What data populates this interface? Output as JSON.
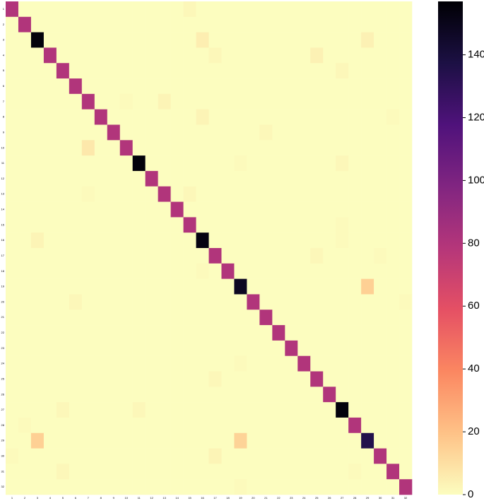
{
  "chart_data": {
    "type": "heatmap",
    "x": [
      "1",
      "2",
      "3",
      "4",
      "5",
      "6",
      "7",
      "8",
      "9",
      "10",
      "11",
      "12",
      "13",
      "14",
      "15",
      "16",
      "17",
      "18",
      "19",
      "20",
      "21",
      "22",
      "23",
      "24",
      "25",
      "26",
      "27",
      "28",
      "29",
      "30",
      "31",
      "32"
    ],
    "y": [
      "1",
      "2",
      "3",
      "4",
      "5",
      "6",
      "7",
      "8",
      "9",
      "10",
      "11",
      "12",
      "13",
      "14",
      "15",
      "16",
      "17",
      "18",
      "19",
      "20",
      "21",
      "22",
      "23",
      "24",
      "25",
      "26",
      "27",
      "28",
      "29",
      "30",
      "31",
      "32"
    ],
    "values": [
      [
        80,
        0,
        0,
        0,
        0,
        0,
        0,
        0,
        0,
        0,
        0,
        0,
        0,
        0,
        2,
        0,
        0,
        0,
        0,
        0,
        0,
        0,
        0,
        0,
        0,
        0,
        0,
        0,
        0,
        0,
        0,
        0
      ],
      [
        0,
        80,
        0,
        0,
        0,
        0,
        0,
        0,
        0,
        0,
        0,
        0,
        0,
        0,
        0,
        0,
        0,
        0,
        0,
        0,
        0,
        0,
        0,
        0,
        0,
        0,
        0,
        0,
        0,
        0,
        0,
        0
      ],
      [
        0,
        0,
        155,
        0,
        0,
        0,
        0,
        0,
        0,
        0,
        0,
        0,
        0,
        0,
        0,
        5,
        0,
        0,
        0,
        0,
        0,
        0,
        0,
        0,
        0,
        0,
        0,
        0,
        4,
        0,
        0,
        0
      ],
      [
        0,
        0,
        0,
        80,
        0,
        0,
        0,
        0,
        0,
        0,
        0,
        0,
        0,
        0,
        0,
        0,
        2,
        0,
        0,
        0,
        0,
        0,
        0,
        0,
        4,
        0,
        0,
        0,
        0,
        0,
        0,
        0
      ],
      [
        0,
        0,
        0,
        0,
        80,
        0,
        0,
        0,
        0,
        0,
        0,
        0,
        0,
        0,
        0,
        0,
        0,
        0,
        0,
        0,
        0,
        0,
        0,
        0,
        0,
        0,
        2,
        0,
        0,
        0,
        0,
        0
      ],
      [
        0,
        0,
        0,
        0,
        0,
        80,
        0,
        0,
        0,
        0,
        0,
        0,
        0,
        0,
        0,
        0,
        0,
        0,
        0,
        0,
        0,
        0,
        0,
        0,
        0,
        0,
        0,
        0,
        0,
        0,
        0,
        0
      ],
      [
        0,
        0,
        0,
        0,
        0,
        0,
        80,
        0,
        0,
        1,
        0,
        0,
        3,
        0,
        0,
        0,
        0,
        0,
        0,
        0,
        0,
        0,
        0,
        0,
        0,
        0,
        0,
        0,
        0,
        0,
        0,
        0
      ],
      [
        0,
        0,
        0,
        0,
        0,
        0,
        0,
        80,
        0,
        0,
        0,
        0,
        0,
        0,
        0,
        3,
        0,
        0,
        0,
        0,
        0,
        0,
        0,
        0,
        0,
        0,
        0,
        0,
        0,
        0,
        1,
        0
      ],
      [
        0,
        0,
        0,
        0,
        0,
        0,
        0,
        0,
        80,
        0,
        0,
        0,
        0,
        0,
        0,
        0,
        0,
        0,
        0,
        0,
        2,
        0,
        0,
        0,
        0,
        0,
        0,
        0,
        0,
        0,
        0,
        0
      ],
      [
        0,
        0,
        0,
        0,
        0,
        0,
        7,
        0,
        0,
        80,
        0,
        0,
        0,
        0,
        0,
        0,
        0,
        0,
        0,
        0,
        0,
        0,
        0,
        0,
        0,
        0,
        0,
        0,
        0,
        0,
        0,
        0
      ],
      [
        0,
        0,
        0,
        0,
        0,
        0,
        0,
        0,
        0,
        0,
        155,
        0,
        0,
        0,
        0,
        0,
        0,
        0,
        1,
        0,
        0,
        0,
        0,
        0,
        0,
        0,
        2,
        0,
        0,
        0,
        0,
        0
      ],
      [
        0,
        0,
        0,
        0,
        0,
        0,
        0,
        0,
        0,
        0,
        0,
        80,
        0,
        0,
        0,
        0,
        0,
        0,
        0,
        0,
        0,
        0,
        0,
        0,
        0,
        0,
        0,
        0,
        0,
        0,
        0,
        0
      ],
      [
        0,
        0,
        0,
        0,
        0,
        0,
        1,
        0,
        0,
        0,
        0,
        0,
        80,
        0,
        2,
        0,
        0,
        0,
        0,
        0,
        0,
        0,
        0,
        0,
        0,
        0,
        0,
        0,
        0,
        0,
        0,
        0
      ],
      [
        0,
        0,
        0,
        0,
        0,
        0,
        0,
        0,
        0,
        0,
        0,
        0,
        0,
        80,
        0,
        0,
        0,
        0,
        0,
        0,
        0,
        0,
        0,
        0,
        0,
        0,
        0,
        0,
        0,
        0,
        0,
        0
      ],
      [
        0,
        0,
        0,
        0,
        0,
        0,
        0,
        0,
        0,
        0,
        0,
        0,
        0,
        0,
        80,
        0,
        0,
        0,
        0,
        0,
        0,
        0,
        0,
        0,
        0,
        0,
        1,
        0,
        0,
        0,
        0,
        0
      ],
      [
        0,
        0,
        3,
        0,
        0,
        0,
        0,
        0,
        0,
        0,
        0,
        0,
        0,
        0,
        0,
        153,
        0,
        0,
        0,
        0,
        0,
        0,
        0,
        0,
        0,
        0,
        1,
        0,
        0,
        0,
        0,
        0
      ],
      [
        0,
        0,
        0,
        0,
        0,
        0,
        0,
        0,
        0,
        0,
        0,
        0,
        0,
        0,
        0,
        0,
        80,
        0,
        0,
        0,
        0,
        0,
        0,
        0,
        2,
        0,
        0,
        0,
        0,
        1,
        0,
        0
      ],
      [
        0,
        0,
        0,
        0,
        0,
        0,
        0,
        0,
        0,
        0,
        0,
        0,
        0,
        0,
        0,
        1,
        0,
        80,
        0,
        0,
        0,
        0,
        0,
        0,
        0,
        0,
        0,
        0,
        0,
        0,
        0,
        0
      ],
      [
        0,
        0,
        0,
        0,
        0,
        0,
        0,
        0,
        0,
        0,
        0,
        0,
        0,
        0,
        0,
        0,
        0,
        0,
        148,
        0,
        0,
        0,
        0,
        0,
        0,
        0,
        0,
        0,
        15,
        0,
        0,
        0
      ],
      [
        0,
        0,
        0,
        0,
        0,
        2,
        0,
        0,
        0,
        0,
        0,
        0,
        0,
        0,
        0,
        0,
        0,
        0,
        0,
        80,
        0,
        0,
        0,
        0,
        0,
        0,
        0,
        0,
        0,
        0,
        0,
        1
      ],
      [
        0,
        0,
        0,
        0,
        0,
        0,
        0,
        0,
        0,
        0,
        0,
        0,
        0,
        0,
        0,
        0,
        0,
        0,
        0,
        0,
        80,
        0,
        0,
        0,
        0,
        0,
        0,
        0,
        0,
        0,
        0,
        0
      ],
      [
        0,
        0,
        0,
        0,
        0,
        0,
        0,
        0,
        0,
        0,
        0,
        0,
        0,
        0,
        0,
        0,
        0,
        0,
        0,
        0,
        0,
        80,
        0,
        0,
        0,
        0,
        0,
        0,
        0,
        0,
        0,
        0
      ],
      [
        0,
        0,
        0,
        0,
        0,
        0,
        0,
        0,
        0,
        0,
        0,
        0,
        0,
        0,
        0,
        0,
        0,
        0,
        0,
        0,
        0,
        0,
        80,
        0,
        0,
        0,
        0,
        0,
        0,
        0,
        0,
        0
      ],
      [
        0,
        0,
        0,
        0,
        0,
        0,
        0,
        0,
        0,
        0,
        0,
        0,
        0,
        0,
        0,
        0,
        0,
        0,
        1,
        0,
        0,
        0,
        0,
        80,
        0,
        0,
        0,
        0,
        0,
        0,
        0,
        0
      ],
      [
        0,
        0,
        0,
        0,
        0,
        0,
        0,
        0,
        0,
        0,
        0,
        0,
        0,
        0,
        0,
        0,
        2,
        0,
        0,
        0,
        0,
        0,
        0,
        0,
        80,
        0,
        0,
        0,
        0,
        0,
        0,
        0
      ],
      [
        0,
        0,
        0,
        0,
        0,
        0,
        0,
        0,
        0,
        0,
        0,
        0,
        0,
        0,
        0,
        0,
        0,
        0,
        0,
        0,
        0,
        0,
        0,
        0,
        0,
        80,
        0,
        0,
        0,
        0,
        0,
        0
      ],
      [
        0,
        0,
        0,
        0,
        2,
        0,
        0,
        0,
        0,
        0,
        2,
        0,
        0,
        0,
        0,
        0,
        0,
        0,
        0,
        0,
        0,
        0,
        0,
        0,
        0,
        0,
        155,
        0,
        0,
        0,
        0,
        0
      ],
      [
        0,
        1,
        0,
        0,
        0,
        0,
        0,
        0,
        0,
        0,
        0,
        0,
        0,
        0,
        0,
        0,
        0,
        0,
        0,
        0,
        0,
        0,
        0,
        0,
        0,
        0,
        0,
        80,
        0,
        0,
        0,
        0
      ],
      [
        0,
        0,
        15,
        0,
        0,
        0,
        0,
        0,
        0,
        0,
        0,
        0,
        0,
        0,
        0,
        0,
        0,
        0,
        14,
        0,
        0,
        0,
        0,
        0,
        0,
        0,
        0,
        0,
        135,
        0,
        0,
        0
      ],
      [
        1,
        0,
        0,
        0,
        0,
        0,
        0,
        0,
        0,
        0,
        0,
        0,
        0,
        0,
        0,
        0,
        3,
        0,
        0,
        0,
        0,
        0,
        0,
        0,
        0,
        0,
        0,
        0,
        0,
        80,
        0,
        0
      ],
      [
        0,
        0,
        0,
        0,
        2,
        0,
        0,
        0,
        0,
        0,
        0,
        0,
        0,
        0,
        0,
        0,
        0,
        0,
        0,
        0,
        0,
        0,
        0,
        0,
        0,
        0,
        0,
        1,
        0,
        0,
        80,
        0
      ],
      [
        0,
        0,
        0,
        0,
        0,
        0,
        0,
        0,
        0,
        0,
        0,
        0,
        0,
        0,
        0,
        0,
        0,
        0,
        1,
        0,
        0,
        0,
        0,
        0,
        0,
        0,
        0,
        0,
        0,
        0,
        0,
        80
      ]
    ],
    "colormap": "magma_r",
    "zlim": [
      0,
      157
    ],
    "zticks": [
      0,
      20,
      40,
      60,
      80,
      100,
      120,
      140
    ]
  }
}
